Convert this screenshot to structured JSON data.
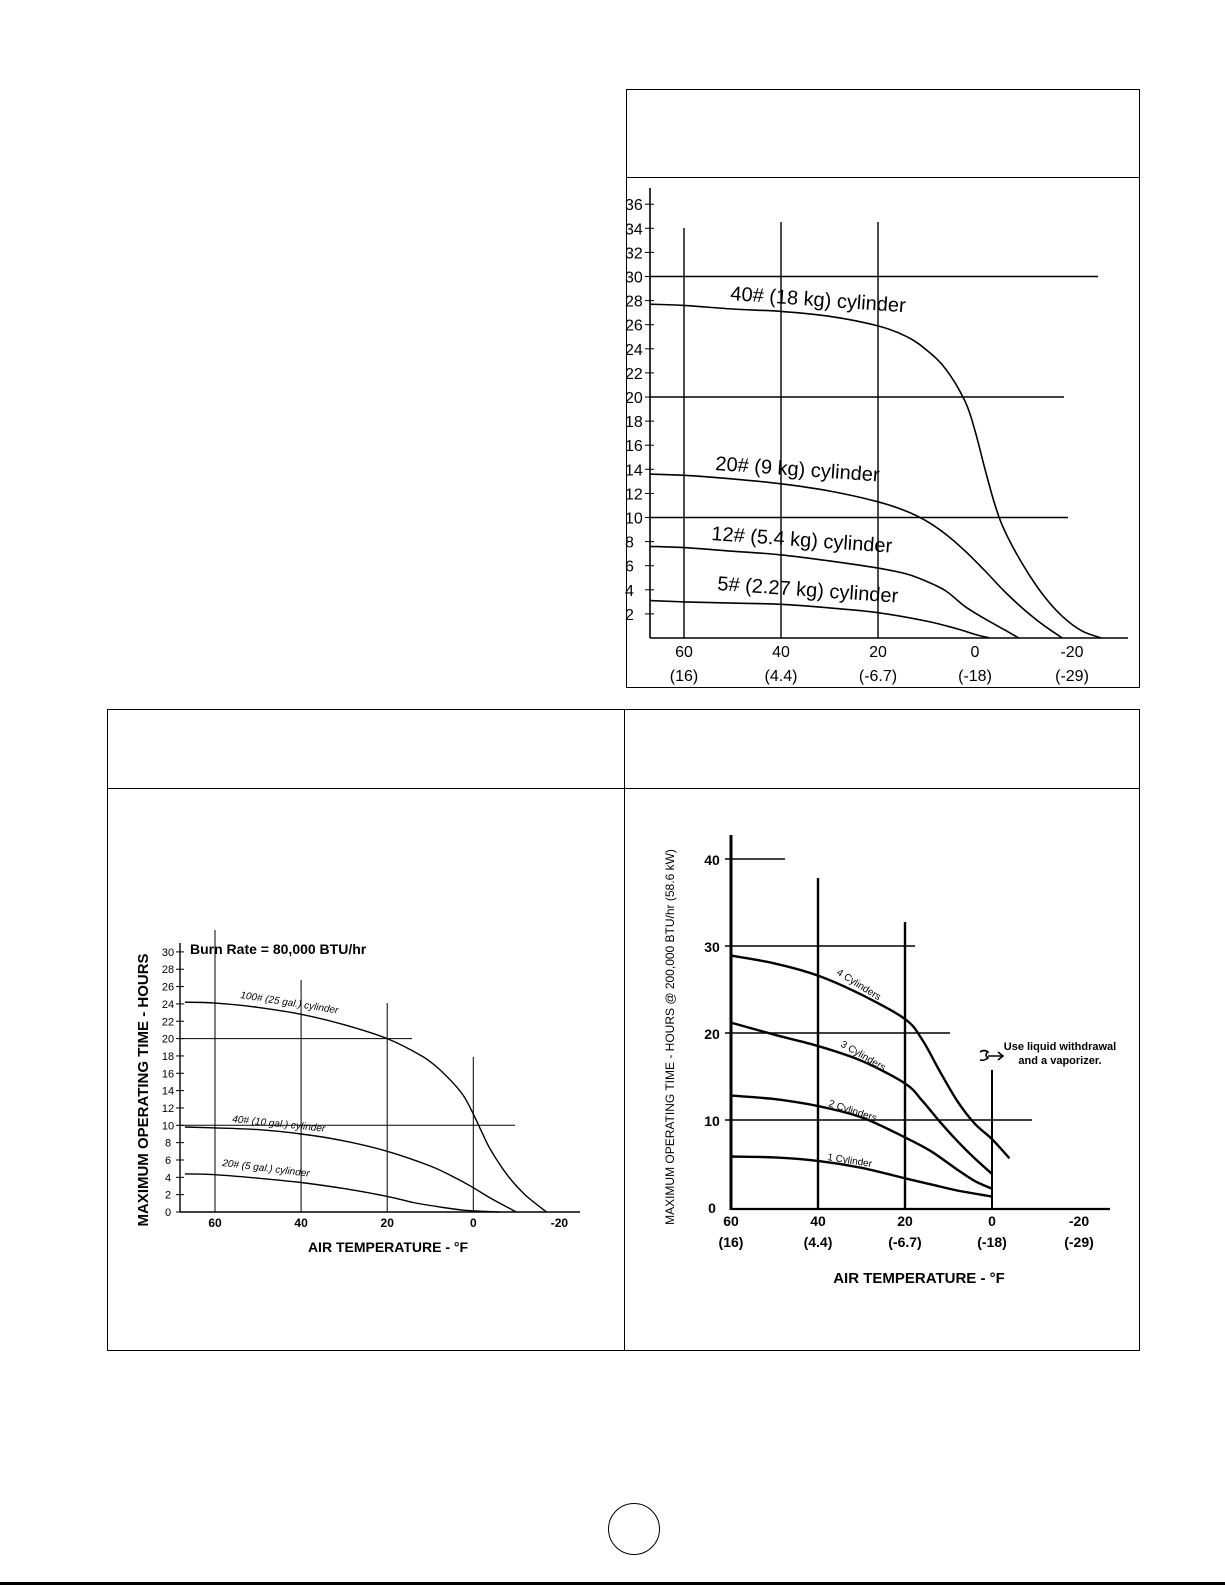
{
  "chart_data": [
    {
      "type": "line",
      "title": "",
      "xlabel": "",
      "ylabel": "",
      "ylim": [
        0,
        37
      ],
      "xlim": [
        67,
        -29
      ],
      "y_ticks": [
        "2",
        "4",
        "6",
        "8",
        "10",
        "12",
        "14",
        "16",
        "18",
        "20",
        "22",
        "24",
        "26",
        "28",
        "30",
        "32",
        "34",
        "36"
      ],
      "x_ticks": [
        {
          "f": "60",
          "c": "(16)"
        },
        {
          "f": "40",
          "c": "(4.4)"
        },
        {
          "f": "20",
          "c": "(-6.7)"
        },
        {
          "f": "0",
          "c": "(-18)"
        },
        {
          "f": "-20",
          "c": "(-29)"
        }
      ],
      "series": [
        {
          "name": "40# (18 kg) cylinder",
          "x": [
            67,
            60,
            50,
            40,
            30,
            20,
            14,
            10,
            6,
            2,
            0,
            -2,
            -4,
            -6,
            -10,
            -14,
            -18,
            -22,
            -26
          ],
          "y": [
            27.7,
            27.6,
            27.3,
            27.1,
            26.7,
            25.9,
            25.0,
            23.9,
            22.3,
            19.6,
            17.2,
            14.1,
            11.2,
            9.0,
            6.0,
            3.6,
            1.8,
            0.6,
            0
          ]
        },
        {
          "name": "20# (9 kg) cylinder",
          "x": [
            67,
            60,
            50,
            40,
            30,
            20,
            14,
            10,
            6,
            2,
            -2,
            -6,
            -10,
            -14,
            -18
          ],
          "y": [
            13.6,
            13.5,
            13.2,
            12.8,
            12.2,
            11.3,
            10.5,
            9.7,
            8.6,
            7.2,
            5.6,
            3.9,
            2.4,
            1.1,
            0
          ]
        },
        {
          "name": "12# (5.4 kg) cylinder",
          "x": [
            67,
            60,
            50,
            40,
            30,
            20,
            14,
            10,
            6,
            2,
            -2,
            -6,
            -9
          ],
          "y": [
            7.6,
            7.5,
            7.2,
            6.9,
            6.4,
            5.8,
            5.3,
            4.7,
            3.9,
            2.6,
            1.6,
            0.7,
            0
          ]
        },
        {
          "name": "5# (2.27 kg) cylinder",
          "x": [
            67,
            60,
            50,
            40,
            30,
            20,
            10,
            4,
            0,
            -3
          ],
          "y": [
            3.1,
            3.0,
            2.9,
            2.8,
            2.5,
            2.1,
            1.4,
            0.8,
            0.3,
            0
          ]
        }
      ]
    },
    {
      "type": "line",
      "title": "Burn Rate = 80,000 BTU/hr",
      "xlabel": "AIR TEMPERATURE - °F",
      "ylabel": "MAXIMUM OPERATING TIME - HOURS",
      "ylim": [
        0,
        30
      ],
      "xlim": [
        68,
        -22
      ],
      "y_ticks": [
        "0",
        "2",
        "4",
        "6",
        "8",
        "10",
        "12",
        "14",
        "16",
        "18",
        "20",
        "22",
        "24",
        "26",
        "28",
        "30"
      ],
      "x_ticks": [
        "60",
        "40",
        "20",
        "0",
        "-20"
      ],
      "series": [
        {
          "name": "100# (25 gal.) cylinder",
          "x": [
            67,
            60,
            50,
            40,
            30,
            20,
            12,
            8,
            4,
            2,
            0,
            -2,
            -4,
            -8,
            -12,
            -17
          ],
          "y": [
            24.2,
            24.1,
            23.6,
            22.8,
            21.6,
            20.0,
            18.0,
            16.5,
            14.5,
            13.2,
            11.3,
            9.2,
            7.2,
            4.2,
            2.0,
            0
          ]
        },
        {
          "name": "40# (10 gal.) cylinder",
          "x": [
            67,
            60,
            50,
            40,
            30,
            20,
            10,
            4,
            0,
            -4,
            -10
          ],
          "y": [
            9.8,
            9.7,
            9.5,
            9.0,
            8.2,
            7.0,
            5.3,
            3.9,
            2.8,
            1.6,
            0
          ]
        },
        {
          "name": "20# (5 gal.) cylinder",
          "x": [
            67,
            60,
            50,
            40,
            30,
            20,
            14,
            8,
            2,
            -6
          ],
          "y": [
            4.4,
            4.3,
            3.9,
            3.4,
            2.7,
            1.8,
            1.1,
            0.6,
            0.2,
            0
          ]
        }
      ]
    },
    {
      "type": "line",
      "title": "",
      "xlabel": "AIR TEMPERATURE - °F",
      "ylabel": "MAXIMUM OPERATING TIME - HOURS @ 200,000 BTU/hr (58.6 kW)",
      "ylim": [
        0,
        43
      ],
      "xlim": [
        60,
        -27
      ],
      "y_ticks": [
        "0",
        "10",
        "20",
        "30",
        "40"
      ],
      "x_ticks": [
        {
          "f": "60",
          "c": "(16)"
        },
        {
          "f": "40",
          "c": "(4.4)"
        },
        {
          "f": "20",
          "c": "(-6.7)"
        },
        {
          "f": "0",
          "c": "(-18)"
        },
        {
          "f": "-20",
          "c": "(-29)"
        }
      ],
      "annotation": "Use liquid withdrawal and a vaporizer.",
      "series": [
        {
          "name": "4 Cylinders",
          "x": [
            60,
            50,
            40,
            30,
            20,
            16,
            12,
            8,
            4,
            0,
            -4
          ],
          "y": [
            28.9,
            28.0,
            26.6,
            24.4,
            21.6,
            19.2,
            15.6,
            12.2,
            9.6,
            7.8,
            5.6
          ]
        },
        {
          "name": "3 Cylinders",
          "x": [
            60,
            50,
            40,
            30,
            20,
            16,
            12,
            8,
            4,
            0
          ],
          "y": [
            21.2,
            19.8,
            18.5,
            16.8,
            14.2,
            12.2,
            9.8,
            7.6,
            5.6,
            3.8
          ]
        },
        {
          "name": "2 Cylinders",
          "x": [
            60,
            50,
            40,
            30,
            20,
            14,
            8,
            4,
            0
          ],
          "y": [
            12.8,
            12.4,
            11.6,
            10.3,
            8.0,
            6.4,
            4.3,
            3.0,
            2.1
          ]
        },
        {
          "name": "1 Cylinder",
          "x": [
            60,
            50,
            40,
            30,
            20,
            14,
            8,
            0
          ],
          "y": [
            5.8,
            5.7,
            5.3,
            4.5,
            3.3,
            2.6,
            1.9,
            1.2
          ]
        }
      ]
    }
  ],
  "page": {
    "page_number": ""
  }
}
